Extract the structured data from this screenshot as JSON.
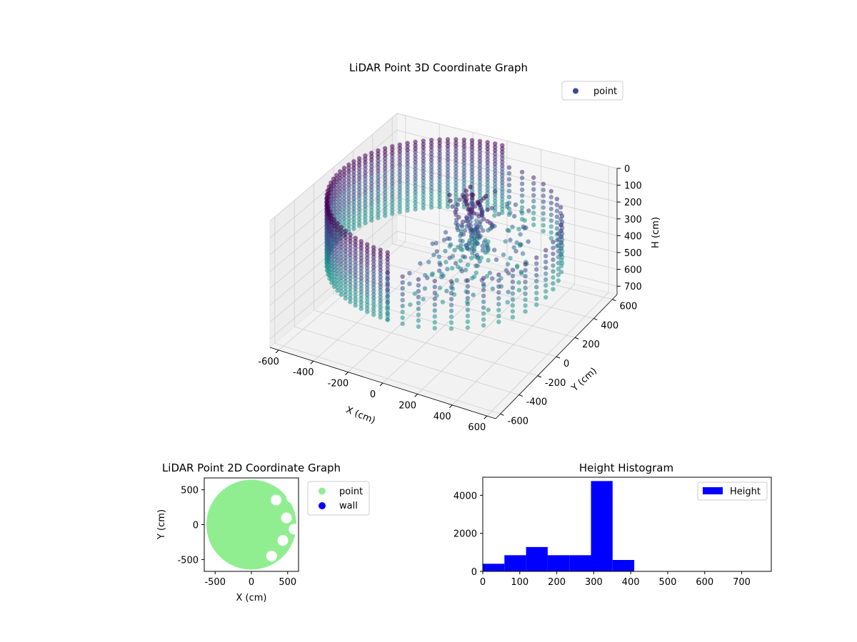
{
  "chart_data": [
    {
      "type": "scatter3d",
      "title": "LiDAR Point 3D Coordinate Graph",
      "xlabel": "X (cm)",
      "ylabel": "Y (cm)",
      "zlabel": "H (cm)",
      "xticks": [
        -600,
        -400,
        -200,
        0,
        200,
        400,
        600
      ],
      "yticks": [
        -600,
        -400,
        -200,
        0,
        200,
        400,
        600
      ],
      "zticks": [
        0,
        100,
        200,
        300,
        400,
        500,
        600,
        700
      ],
      "xlim": [
        -650,
        650
      ],
      "ylim": [
        -650,
        650
      ],
      "zlim": [
        750,
        0
      ],
      "z_inverted": true,
      "legend": [
        {
          "name": "point",
          "color": "#3b4a8c"
        }
      ],
      "legend_position": "upper-right",
      "colormap": "viridis",
      "structure": {
        "wall_radius": 600,
        "wall_height_range": [
          0,
          400
        ],
        "wall_open_sector_deg": [
          -90,
          90
        ],
        "inner_object_center": [
          100,
          100
        ],
        "inner_object_height_range": [
          0,
          350
        ]
      }
    },
    {
      "type": "scatter",
      "title": "LiDAR Point 2D Coordinate Graph",
      "xlabel": "X (cm)",
      "ylabel": "Y (cm)",
      "xticks": [
        -500,
        0,
        500
      ],
      "yticks": [
        -500,
        0,
        500
      ],
      "xlim": [
        -650,
        650
      ],
      "ylim": [
        -670,
        670
      ],
      "series": [
        {
          "name": "point",
          "color": "#90ee90"
        },
        {
          "name": "wall",
          "color": "#0000ff"
        }
      ],
      "legend_position": "outside-right",
      "disc_radius": 620
    },
    {
      "type": "bar",
      "title": "Height Histogram",
      "xlabel": "",
      "ylabel": "",
      "legend": [
        {
          "name": "Height",
          "color": "#0000ff"
        }
      ],
      "legend_position": "upper-right",
      "xlim": [
        0,
        780
      ],
      "ylim": [
        0,
        4950
      ],
      "xticks": [
        0,
        100,
        200,
        300,
        400,
        500,
        600,
        700
      ],
      "yticks": [
        0,
        2000,
        4000
      ],
      "bin_edges": [
        0,
        58.5,
        117,
        175.5,
        234,
        292.5,
        351,
        409.5
      ],
      "counts": [
        400,
        850,
        1280,
        850,
        850,
        4750,
        600
      ],
      "color": "#0000ff"
    }
  ]
}
